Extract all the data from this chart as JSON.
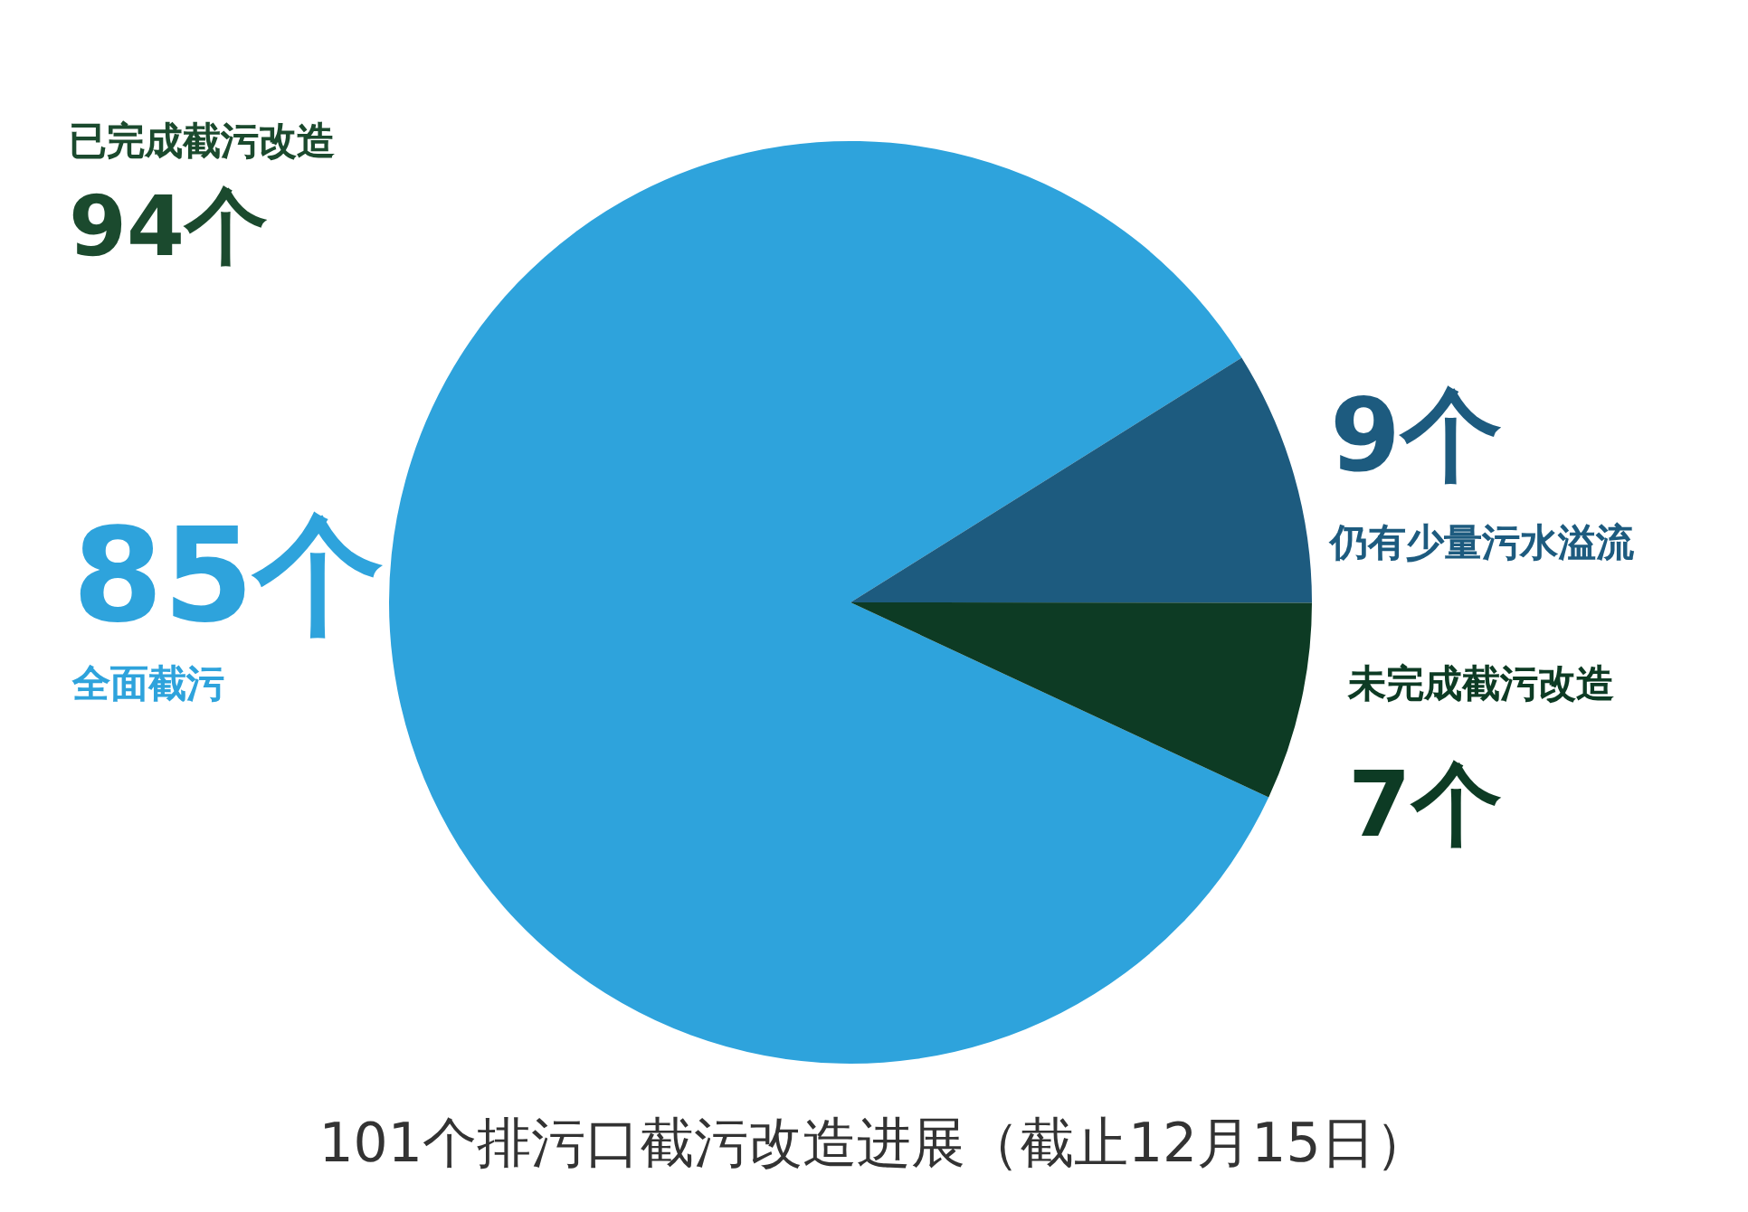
{
  "chart_data": {
    "type": "pie",
    "title": "101个排污口截污改造进展（截止12月15日）",
    "categories": [
      "全面截污",
      "仍有少量污水溢流",
      "未完成截污改造"
    ],
    "values": [
      85,
      9,
      7
    ],
    "value_labels": [
      "85个",
      "9个",
      "7个"
    ],
    "colors": [
      "#2ea3dc",
      "#1d5b7f",
      "#0d3b24"
    ],
    "annotations": [
      "已完成截污改造",
      "94个"
    ],
    "legend": false
  }
}
